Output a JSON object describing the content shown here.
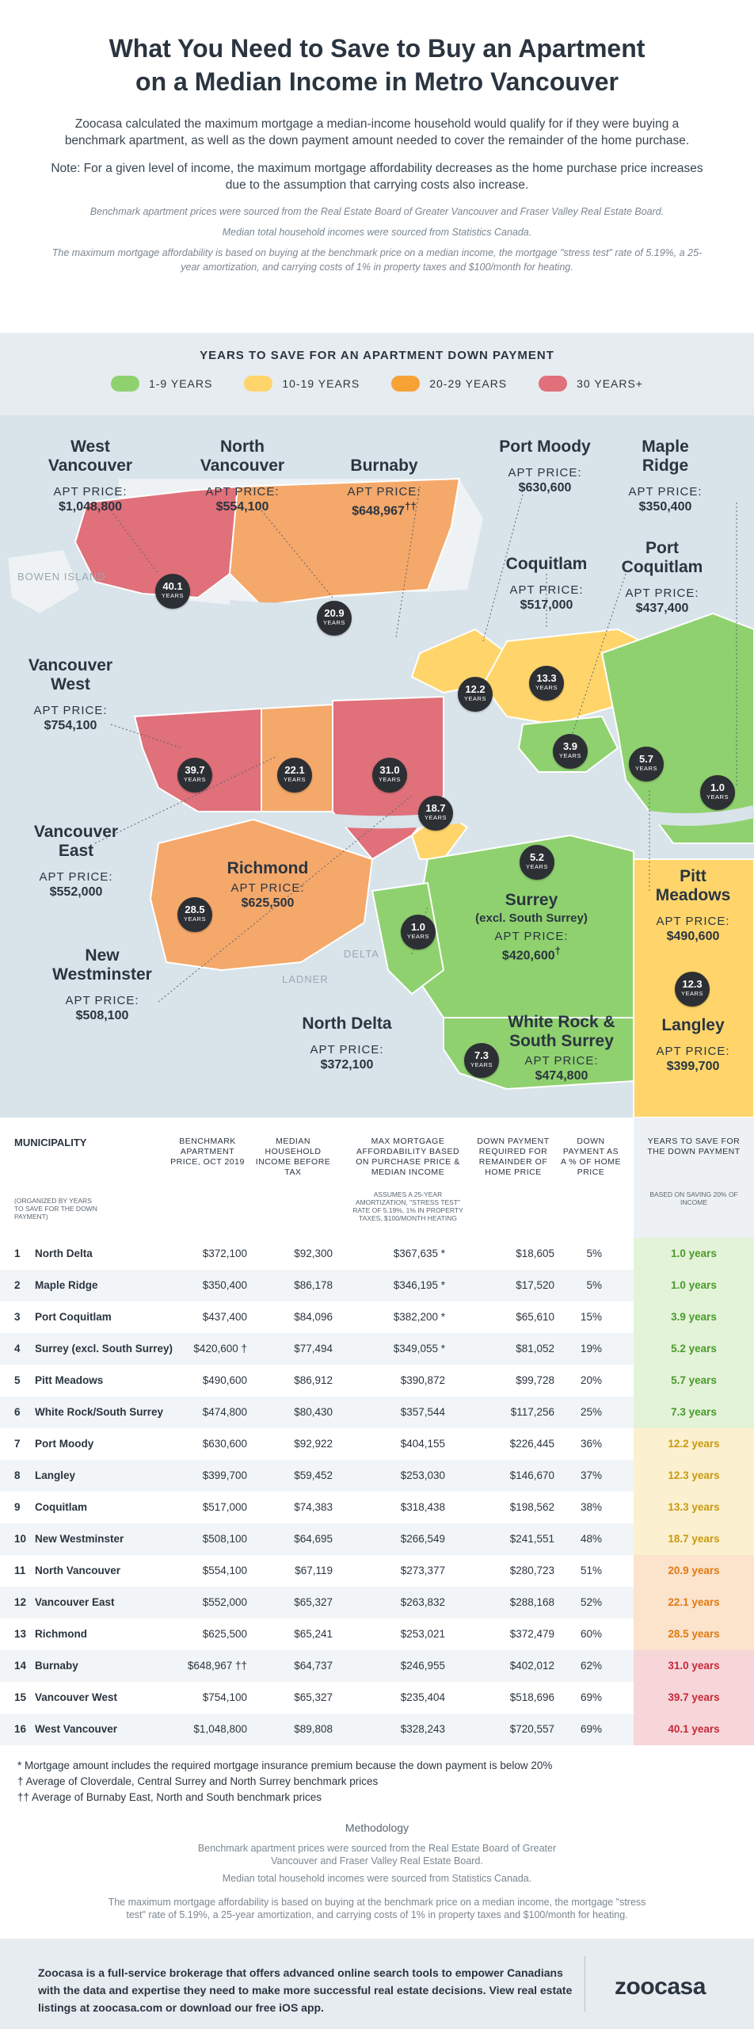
{
  "header": {
    "title_line1": "What You Need to Save to Buy an Apartment",
    "title_line2": "on a Median Income in Metro Vancouver",
    "intro": "Zoocasa calculated the maximum mortgage a median-income household would qualify for if they were buying a benchmark apartment, as well as the down payment amount needed to cover the remainder of the home purchase.",
    "note": "Note: For a given level of income, the maximum mortgage affordability decreases as the home purchase price increases due to the assumption that carrying costs also increase.",
    "source_prices": "Benchmark apartment prices were sourced from the Real Estate Board of Greater Vancouver and Fraser Valley Real Estate Board.",
    "source_income": "Median total household incomes were sourced from Statistics Canada.",
    "assumptions": "The maximum mortgage affordability is based on buying at the benchmark price on a median income, the mortgage \"stress test\" rate of 5.19%, a 25-year amortization, and carrying costs of 1% in property taxes and $100/month for heating."
  },
  "legend": {
    "title": "YEARS TO SAVE FOR AN APARTMENT DOWN PAYMENT",
    "items": [
      {
        "label": "1-9 YEARS",
        "color": "#8fd16f"
      },
      {
        "label": "10-19 YEARS",
        "color": "#ffd56b"
      },
      {
        "label": "20-29 YEARS",
        "color": "#f7a235"
      },
      {
        "label": "30 YEARS+",
        "color": "#e0707a"
      }
    ]
  },
  "map": {
    "apt_label": "APT PRICE:",
    "years_label": "YEARS",
    "geo_labels": [
      "BOWEN ISLAND",
      "DELTA",
      "LADNER"
    ],
    "municipalities": {
      "west_vancouver": {
        "name": "West Vancouver",
        "price": "$1,048,800",
        "years": "40.1"
      },
      "north_vancouver": {
        "name": "North Vancouver",
        "price": "$554,100",
        "years": "20.9"
      },
      "burnaby": {
        "name": "Burnaby",
        "price": "$648,967",
        "price_mark": "††",
        "years": "31.0"
      },
      "port_moody": {
        "name": "Port Moody",
        "price": "$630,600",
        "years": "12.2"
      },
      "maple_ridge": {
        "name": "Maple Ridge",
        "price": "$350,400",
        "years": "1.0"
      },
      "coquitlam": {
        "name": "Coquitlam",
        "price": "$517,000",
        "years": "13.3"
      },
      "port_coquitlam": {
        "name": "Port Coquitlam",
        "price": "$437,400",
        "years": "3.9"
      },
      "vancouver_west": {
        "name": "Vancouver West",
        "price": "$754,100",
        "years": "39.7"
      },
      "vancouver_east": {
        "name": "Vancouver East",
        "price": "$552,000",
        "years": "22.1"
      },
      "richmond": {
        "name": "Richmond",
        "price": "$625,500",
        "years": "28.5"
      },
      "new_westminster": {
        "name": "New Westminster",
        "price": "$508,100",
        "years": "18.7"
      },
      "surrey": {
        "name": "Surrey",
        "name2": "(excl. South Surrey)",
        "price": "$420,600",
        "price_mark": "†",
        "years": "5.2"
      },
      "pitt_meadows": {
        "name": "Pitt Meadows",
        "price": "$490,600",
        "years": "5.7"
      },
      "north_delta": {
        "name": "North Delta",
        "price": "$372,100",
        "years": "1.0"
      },
      "white_rock": {
        "name": "White Rock & South Surrey",
        "price": "$474,800",
        "years": "7.3"
      },
      "langley": {
        "name": "Langley",
        "price": "$399,700",
        "years": "12.3"
      }
    }
  },
  "table": {
    "headers": {
      "municipality": "MUNICIPALITY",
      "organized": "(ORGANIZED BY YEARS TO SAVE FOR THE DOWN PAYMENT)",
      "apt_price": "BENCHMARK APARTMENT PRICE, OCT 2019",
      "income": "MEDIAN HOUSEHOLD INCOME BEFORE TAX",
      "mortgage": "MAX MORTGAGE AFFORDABILITY BASED ON PURCHASE PRICE & MEDIAN INCOME",
      "mortgage_note": "ASSUMES A 25-YEAR AMORTIZATION, \"STRESS TEST\" RATE OF 5.19%, 1% IN PROPERTY TAXES, $100/MONTH HEATING",
      "down": "DOWN PAYMENT REQUIRED FOR REMAINDER OF HOME PRICE",
      "pct": "DOWN PAYMENT AS A % OF HOME PRICE",
      "years": "YEARS TO SAVE FOR THE DOWN PAYMENT",
      "years_note": "BASED ON SAVING 20% OF INCOME"
    },
    "rows": [
      {
        "n": "1",
        "name": "North Delta",
        "apt": "$372,100",
        "income": "$92,300",
        "mortgage": "$367,635 *",
        "down": "$18,605",
        "pct": "5%",
        "years": "1.0 years",
        "color": "#4a9a2c",
        "bg": "#e3f3d8"
      },
      {
        "n": "2",
        "name": "Maple Ridge",
        "apt": "$350,400",
        "income": "$86,178",
        "mortgage": "$346,195 *",
        "down": "$17,520",
        "pct": "5%",
        "years": "1.0 years",
        "color": "#4a9a2c",
        "bg": "#e3f3d8"
      },
      {
        "n": "3",
        "name": "Port Coquitlam",
        "apt": "$437,400",
        "income": "$84,096",
        "mortgage": "$382,200 *",
        "down": "$65,610",
        "pct": "15%",
        "years": "3.9 years",
        "color": "#4a9a2c",
        "bg": "#e3f3d8"
      },
      {
        "n": "4",
        "name": "Surrey (excl. South Surrey)",
        "apt": "$420,600 †",
        "income": "$77,494",
        "mortgage": "$349,055 *",
        "down": "$81,052",
        "pct": "19%",
        "years": "5.2 years",
        "color": "#4a9a2c",
        "bg": "#e3f3d8"
      },
      {
        "n": "5",
        "name": "Pitt Meadows",
        "apt": "$490,600",
        "income": "$86,912",
        "mortgage": "$390,872",
        "down": "$99,728",
        "pct": "20%",
        "years": "5.7 years",
        "color": "#4a9a2c",
        "bg": "#e3f3d8"
      },
      {
        "n": "6",
        "name": "White Rock/South Surrey",
        "apt": "$474,800",
        "income": "$80,430",
        "mortgage": "$357,544",
        "down": "$117,256",
        "pct": "25%",
        "years": "7.3 years",
        "color": "#4a9a2c",
        "bg": "#e3f3d8"
      },
      {
        "n": "7",
        "name": "Port Moody",
        "apt": "$630,600",
        "income": "$92,922",
        "mortgage": "$404,155",
        "down": "$226,445",
        "pct": "36%",
        "years": "12.2 years",
        "color": "#c99a10",
        "bg": "#fbf0cf"
      },
      {
        "n": "8",
        "name": "Langley",
        "apt": "$399,700",
        "income": "$59,452",
        "mortgage": "$253,030",
        "down": "$146,670",
        "pct": "37%",
        "years": "12.3 years",
        "color": "#c99a10",
        "bg": "#fbf0cf"
      },
      {
        "n": "9",
        "name": "Coquitlam",
        "apt": "$517,000",
        "income": "$74,383",
        "mortgage": "$318,438",
        "down": "$198,562",
        "pct": "38%",
        "years": "13.3 years",
        "color": "#c99a10",
        "bg": "#fbf0cf"
      },
      {
        "n": "10",
        "name": "New Westminster",
        "apt": "$508,100",
        "income": "$64,695",
        "mortgage": "$266,549",
        "down": "$241,551",
        "pct": "48%",
        "years": "18.7 years",
        "color": "#c99a10",
        "bg": "#fbf0cf"
      },
      {
        "n": "11",
        "name": "North Vancouver",
        "apt": "$554,100",
        "income": "$67,119",
        "mortgage": "$273,377",
        "down": "$280,723",
        "pct": "51%",
        "years": "20.9 years",
        "color": "#e07a12",
        "bg": "#fbe3cc"
      },
      {
        "n": "12",
        "name": "Vancouver East",
        "apt": "$552,000",
        "income": "$65,327",
        "mortgage": "$263,832",
        "down": "$288,168",
        "pct": "52%",
        "years": "22.1 years",
        "color": "#e07a12",
        "bg": "#fbe3cc"
      },
      {
        "n": "13",
        "name": "Richmond",
        "apt": "$625,500",
        "income": "$65,241",
        "mortgage": "$253,021",
        "down": "$372,479",
        "pct": "60%",
        "years": "28.5 years",
        "color": "#e07a12",
        "bg": "#fbe3cc"
      },
      {
        "n": "14",
        "name": "Burnaby",
        "apt": "$648,967 ††",
        "income": "$64,737",
        "mortgage": "$246,955",
        "down": "$402,012",
        "pct": "62%",
        "years": "31.0 years",
        "color": "#c8283a",
        "bg": "#f6d6d9"
      },
      {
        "n": "15",
        "name": "Vancouver West",
        "apt": "$754,100",
        "income": "$65,327",
        "mortgage": "$235,404",
        "down": "$518,696",
        "pct": "69%",
        "years": "39.7 years",
        "color": "#c8283a",
        "bg": "#f6d6d9"
      },
      {
        "n": "16",
        "name": "West Vancouver",
        "apt": "$1,048,800",
        "income": "$89,808",
        "mortgage": "$328,243",
        "down": "$720,557",
        "pct": "69%",
        "years": "40.1 years",
        "color": "#c8283a",
        "bg": "#f6d6d9"
      }
    ]
  },
  "footnotes": {
    "star": "* Mortgage amount includes the required mortgage insurance premium because the down payment is below 20%",
    "dagger": "† Average of Cloverdale, Central Surrey and North Surrey benchmark prices",
    "double_dagger": "†† Average of Burnaby East, North and South benchmark prices"
  },
  "methodology": {
    "title": "Methodology",
    "prices": "Benchmark apartment prices were sourced from the Real Estate Board of Greater Vancouver and Fraser Valley Real Estate Board.",
    "income": "Median total household incomes were sourced from Statistics Canada.",
    "assumptions": "The maximum mortgage affordability is based on buying at the benchmark price on a median income, the mortgage \"stress test\" rate of 5.19%, a 25-year amortization, and carrying costs of 1% in property taxes and $100/month for heating."
  },
  "footer": {
    "text": "Zoocasa is a full-service brokerage that offers advanced online search tools to empower Canadians with the data and expertise they need to make more successful real estate decisions. View real estate listings at zoocasa.com or download our free iOS app.",
    "logo": "zoocasa"
  }
}
